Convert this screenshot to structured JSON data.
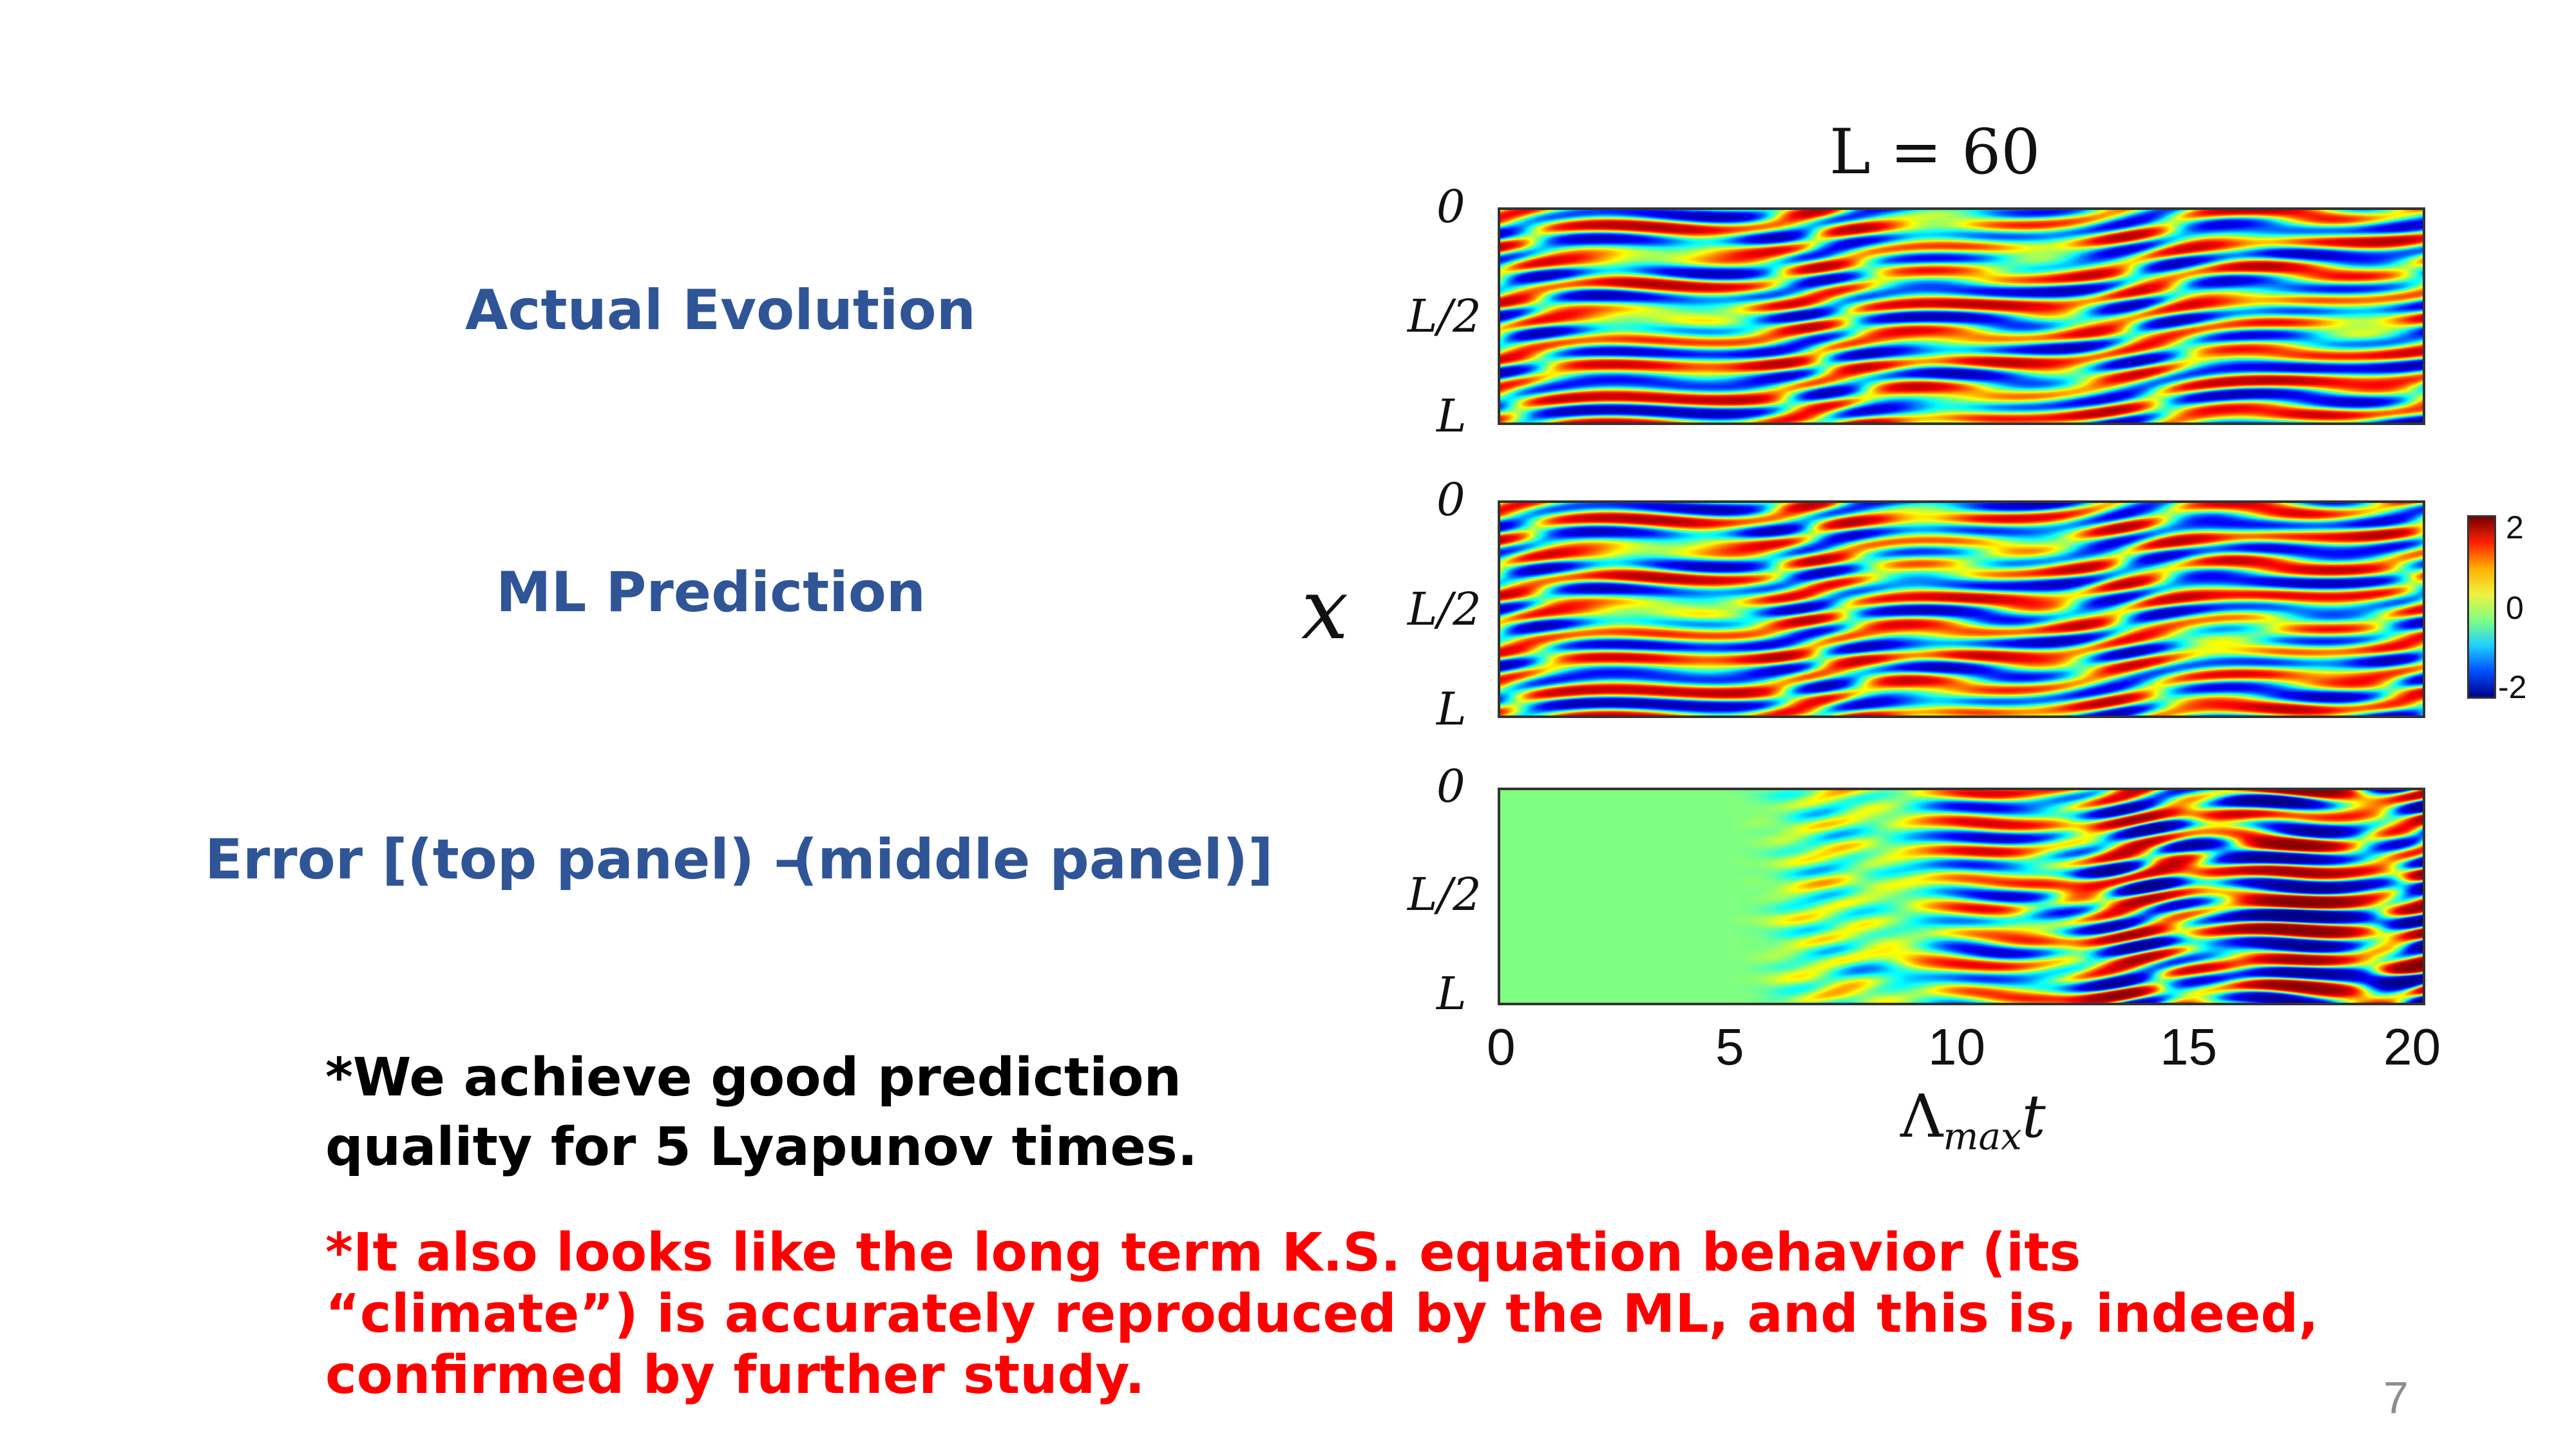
{
  "labels": {
    "actual": "Actual Evolution",
    "ml": "ML Prediction",
    "error_left": "Error [(top panel) –",
    "error_right": "(middle panel)]"
  },
  "notes": {
    "line1": "*We achieve good prediction",
    "line2": "quality for 5 Lyapunov times.",
    "red": "*It also looks like the long term K.S. equation behavior (its “climate”) is accurately reproduced by the ML, and this is, indeed, confirmed by further study."
  },
  "figure": {
    "title": "L = 60",
    "y_axis_label": "x",
    "x_axis_label_main": "Λ",
    "x_axis_label_sub": "max",
    "x_axis_label_var": "t",
    "y_ticks": [
      "0",
      "L/2",
      "L"
    ],
    "x_ticks": [
      "0",
      "5",
      "10",
      "15",
      "20"
    ],
    "colorbar_ticks": [
      "2",
      "0",
      "-2"
    ],
    "colorbar_colors": [
      "#7a0000",
      "#ff2000",
      "#ffb000",
      "#f0f040",
      "#80ff80",
      "#20d0ff",
      "#0050ff",
      "#00008a"
    ]
  },
  "chart_data": {
    "type": "heatmap",
    "title": "L = 60",
    "panels": [
      "Actual Evolution",
      "ML Prediction",
      "Error [(top panel) – (middle panel)]"
    ],
    "xlabel": "Λ_max t",
    "ylabel": "x",
    "xlim": [
      0,
      20
    ],
    "x_ticks": [
      0,
      5,
      10,
      15,
      20
    ],
    "y_ticks": [
      "0",
      "L/2",
      "L"
    ],
    "colorbar_range": [
      -2,
      2
    ],
    "colorbar_ticks": [
      2,
      0,
      -2
    ],
    "error_near_zero_until": 5
  },
  "slide_number": "7"
}
